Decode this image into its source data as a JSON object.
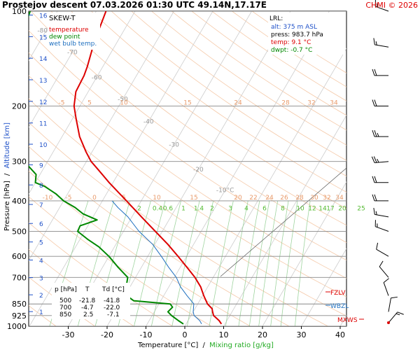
{
  "header": {
    "title": "Prostejov   descent   07.03.2026 01:30 UTC  49.14N,17.17E",
    "credit": "CHMI © 2026"
  },
  "legend": {
    "skew_label": "SKEW-T",
    "items": [
      {
        "label": "temperature",
        "color": "#dd0000"
      },
      {
        "label": "dew point",
        "color": "#008800"
      },
      {
        "label": "wet bulb temp.",
        "color": "#1e6fbf"
      }
    ]
  },
  "lrl": {
    "title": "LRL:",
    "alt": "alt: 375 m ASL",
    "press": "press: 983.7 hPa",
    "temp": "temp: 9.1 °C",
    "dwpt": "dwpt: -0.7 °C",
    "alt_color": "#1e50c8",
    "temp_color": "#dd0000",
    "dwpt_color": "#008800"
  },
  "table": {
    "headers": [
      "p [hPa]",
      "T",
      "Td [°C]"
    ],
    "rows": [
      [
        "500",
        "-21.8",
        "-41.8"
      ],
      [
        "700",
        "-4.7",
        "-22.0"
      ],
      [
        "850",
        "2.5",
        "-7.1"
      ]
    ]
  },
  "levels": {
    "fzlv": "FZLV",
    "wbzl": "WBZL",
    "mxws": "MXWS"
  },
  "axes": {
    "ylabel_pressure": "Pressure [hPa]",
    "ylabel_sep": "/",
    "ylabel_altitude": "Altitude [km]",
    "xlabel_temp": "Temperature [°C]",
    "xlabel_sep": "/",
    "xlabel_mixing": "Mixing ratio [g/kg]"
  },
  "chart_data": {
    "type": "line",
    "chart_kind": "skew-T log-p diagram",
    "y_scale": "log",
    "pressure_ticks": [
      100,
      200,
      300,
      400,
      500,
      600,
      700,
      850,
      925,
      1000
    ],
    "altitude_ticks_km": [
      1,
      2,
      3,
      4,
      5,
      6,
      7,
      8,
      9,
      10,
      11,
      12,
      13,
      14,
      15,
      16
    ],
    "temperature_ticks": [
      -30,
      -20,
      -10,
      0,
      10,
      20,
      30,
      40
    ],
    "isotherm_labels": [
      -80,
      -70,
      -60,
      -50,
      -40,
      -30,
      -20,
      -10
    ],
    "mixing_ratio_labels": [
      "2",
      "0.4",
      "0.6",
      "1",
      "1.4",
      "2",
      "3",
      "4",
      "6",
      "8",
      "10",
      "12",
      "14",
      "17",
      "20",
      "25"
    ],
    "theta_labels_top": [
      "-5",
      "5",
      "10",
      "15",
      "24",
      "28",
      "32",
      "34"
    ],
    "theta_labels_mid": [
      "-10",
      "-5",
      "0",
      "5",
      "10",
      "15",
      "20",
      "22",
      "24",
      "26",
      "28",
      "30",
      "32",
      "34"
    ],
    "theta_label_bottom_left": "32",
    "series": [
      {
        "name": "temperature",
        "color": "#dd0000",
        "points": [
          [
            984,
            9.1
          ],
          [
            960,
            8.0
          ],
          [
            925,
            5.8
          ],
          [
            900,
            5.0
          ],
          [
            880,
            4.4
          ],
          [
            850,
            2.5
          ],
          [
            800,
            0.3
          ],
          [
            750,
            -1.8
          ],
          [
            700,
            -4.7
          ],
          [
            650,
            -8.3
          ],
          [
            600,
            -12.2
          ],
          [
            550,
            -16.6
          ],
          [
            500,
            -21.8
          ],
          [
            450,
            -27.5
          ],
          [
            400,
            -33.8
          ],
          [
            350,
            -41.0
          ],
          [
            320,
            -45.5
          ],
          [
            300,
            -48.8
          ],
          [
            280,
            -51.5
          ],
          [
            250,
            -55.5
          ],
          [
            220,
            -59.0
          ],
          [
            200,
            -61.5
          ],
          [
            180,
            -63.2
          ],
          [
            160,
            -63.5
          ],
          [
            150,
            -64.0
          ],
          [
            130,
            -65.5
          ],
          [
            120,
            -66.2
          ],
          [
            100,
            -67.5
          ]
        ]
      },
      {
        "name": "dew point",
        "color": "#008800",
        "points": [
          [
            984,
            -0.7
          ],
          [
            960,
            -2.5
          ],
          [
            925,
            -5.0
          ],
          [
            900,
            -6.5
          ],
          [
            870,
            -6.0
          ],
          [
            850,
            -7.1
          ],
          [
            830,
            -17.0
          ],
          [
            800,
            -19.5
          ],
          [
            750,
            -21.0
          ],
          [
            700,
            -22.0
          ],
          [
            650,
            -26.0
          ],
          [
            600,
            -30.0
          ],
          [
            560,
            -34.0
          ],
          [
            530,
            -38.0
          ],
          [
            500,
            -41.8
          ],
          [
            480,
            -42.0
          ],
          [
            460,
            -38.5
          ],
          [
            440,
            -43.0
          ],
          [
            420,
            -46.0
          ],
          [
            400,
            -50.0
          ],
          [
            380,
            -53.0
          ],
          [
            360,
            -57.0
          ],
          [
            350,
            -60.0
          ],
          [
            330,
            -61.0
          ],
          [
            300,
            -66.0
          ],
          [
            280,
            -69.0
          ],
          [
            250,
            -73.0
          ],
          [
            220,
            -76.5
          ],
          [
            200,
            -79.0
          ],
          [
            180,
            -81.0
          ],
          [
            160,
            -83.0
          ],
          [
            140,
            -84.5
          ],
          [
            120,
            -85.5
          ],
          [
            100,
            -87.0
          ]
        ]
      },
      {
        "name": "wet bulb temp.",
        "color": "#1e6fbf",
        "points": [
          [
            984,
            4.0
          ],
          [
            960,
            3.0
          ],
          [
            925,
            0.8
          ],
          [
            900,
            0.0
          ],
          [
            850,
            -1.0
          ],
          [
            800,
            -4.0
          ],
          [
            750,
            -7.0
          ],
          [
            700,
            -9.5
          ],
          [
            650,
            -13.0
          ],
          [
            600,
            -16.5
          ],
          [
            550,
            -20.5
          ],
          [
            500,
            -26.0
          ],
          [
            450,
            -31.0
          ],
          [
            420,
            -35.0
          ],
          [
            400,
            -37.5
          ]
        ]
      }
    ],
    "wind_barbs": [
      {
        "p": 100,
        "dir": 290,
        "kt": 15
      },
      {
        "p": 130,
        "dir": 280,
        "kt": 15
      },
      {
        "p": 160,
        "dir": 270,
        "kt": 20
      },
      {
        "p": 200,
        "dir": 270,
        "kt": 20
      },
      {
        "p": 250,
        "dir": 270,
        "kt": 25
      },
      {
        "p": 300,
        "dir": 265,
        "kt": 25
      },
      {
        "p": 350,
        "dir": 270,
        "kt": 20
      },
      {
        "p": 400,
        "dir": 270,
        "kt": 20
      },
      {
        "p": 450,
        "dir": 280,
        "kt": 15
      },
      {
        "p": 500,
        "dir": 290,
        "kt": 15
      },
      {
        "p": 600,
        "dir": 300,
        "kt": 10
      },
      {
        "p": 700,
        "dir": 320,
        "kt": 10
      },
      {
        "p": 800,
        "dir": 340,
        "kt": 10
      },
      {
        "p": 900,
        "dir": 10,
        "kt": 10
      },
      {
        "p": 975,
        "dir": 40,
        "kt": 15
      }
    ]
  }
}
